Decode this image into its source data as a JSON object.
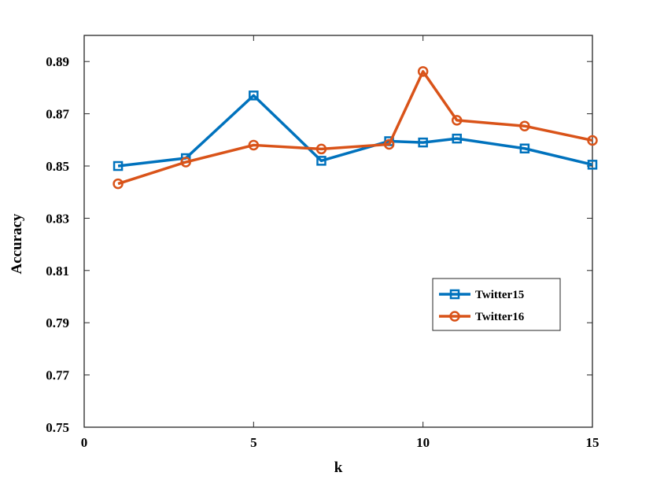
{
  "chart_data": {
    "type": "line",
    "title": "",
    "xlabel": "k",
    "ylabel": "Accuracy",
    "xlim": [
      0,
      15
    ],
    "ylim": [
      0.75,
      0.9
    ],
    "xticks": [
      0,
      5,
      10,
      15
    ],
    "xtick_labels": [
      "0",
      "5",
      "10",
      "15"
    ],
    "yticks": [
      0.75,
      0.77,
      0.79,
      0.81,
      0.83,
      0.85,
      0.87,
      0.89
    ],
    "ytick_labels": [
      "0.75",
      "0.77",
      "0.79",
      "0.81",
      "0.83",
      "0.85",
      "0.87",
      "0.89"
    ],
    "grid": false,
    "legend_position": "right",
    "series": [
      {
        "name": "Twitter15",
        "color": "#0072BD",
        "marker": "square",
        "x": [
          1,
          3,
          5,
          7,
          9,
          10,
          11,
          13,
          15
        ],
        "values": [
          0.85,
          0.853,
          0.877,
          0.852,
          0.8595,
          0.859,
          0.8605,
          0.8567,
          0.8505
        ]
      },
      {
        "name": "Twitter16",
        "color": "#D95319",
        "marker": "circle",
        "x": [
          1,
          3,
          5,
          7,
          9,
          10,
          11,
          13,
          15
        ],
        "values": [
          0.8432,
          0.8515,
          0.858,
          0.8565,
          0.8583,
          0.8862,
          0.8675,
          0.8653,
          0.8598
        ]
      }
    ]
  }
}
